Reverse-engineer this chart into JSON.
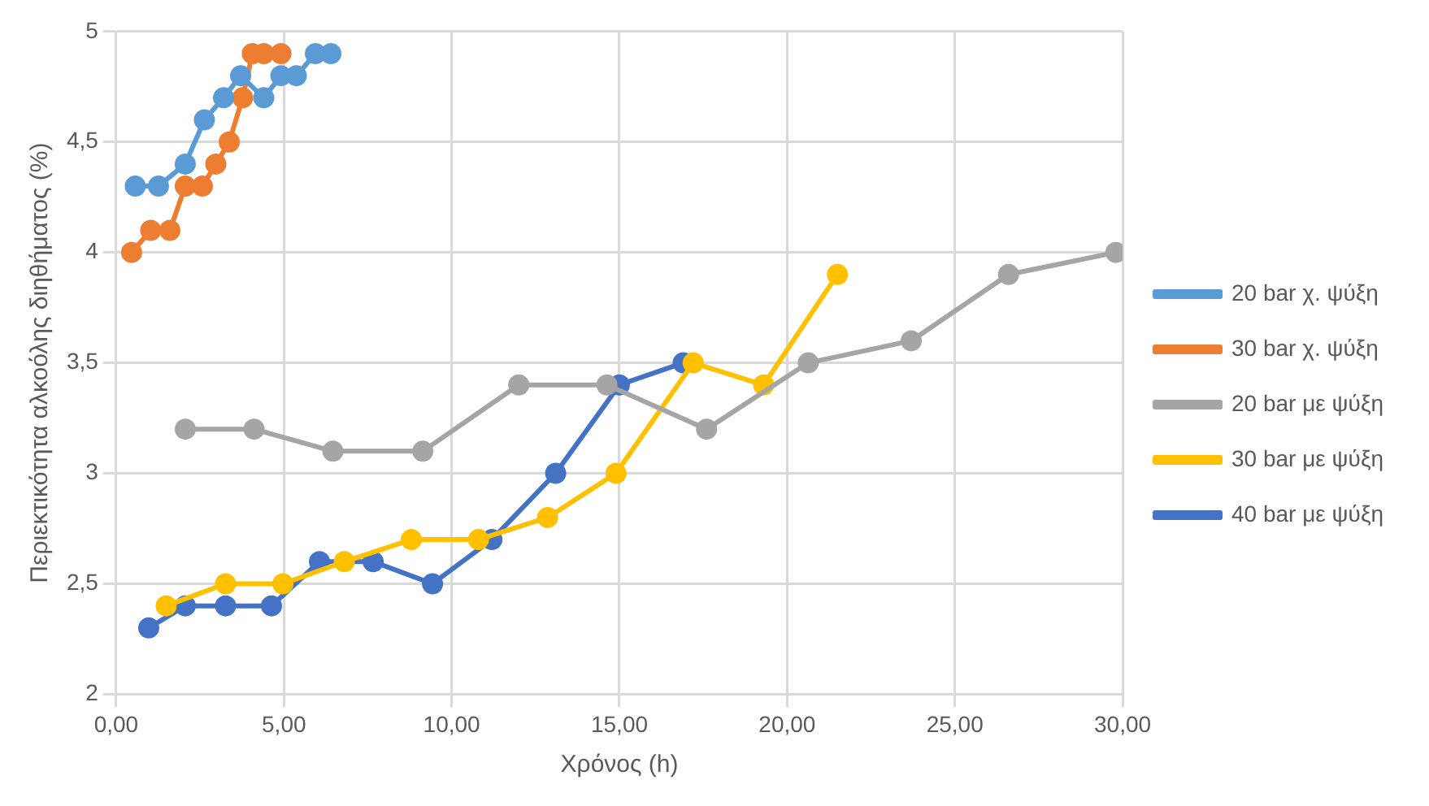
{
  "chart_data": {
    "type": "line",
    "xlabel": "Χρόνος (h)",
    "ylabel": "Περιεκτικότητα αλκοόλης διηθήματος (%)",
    "xlim": [
      0,
      30
    ],
    "xticks": [
      {
        "value": 0,
        "label": "0,00"
      },
      {
        "value": 5,
        "label": "5,00"
      },
      {
        "value": 10,
        "label": "10,00"
      },
      {
        "value": 15,
        "label": "15,00"
      },
      {
        "value": 20,
        "label": "20,00"
      },
      {
        "value": 25,
        "label": "25,00"
      },
      {
        "value": 30,
        "label": "30,00"
      }
    ],
    "ylim": [
      2,
      5
    ],
    "yticks": [
      2,
      {
        "value": 2.5,
        "label": "2,5"
      },
      3,
      {
        "value": 3.5,
        "label": "3,5"
      },
      4,
      {
        "value": 4.5,
        "label": "4,5"
      },
      5
    ],
    "grid": true,
    "legend": "right",
    "marker": "circle",
    "line_style": "solid",
    "series": [
      {
        "name": "20 bar χ. ψύξη",
        "color": "#5b9bd5",
        "x": [
          0.57,
          1.26,
          2.06,
          2.63,
          3.2,
          3.71,
          4.4,
          4.91,
          5.37,
          5.94,
          6.4
        ],
        "values": [
          4.3,
          4.3,
          4.4,
          4.6,
          4.7,
          4.8,
          4.7,
          4.8,
          4.8,
          4.9,
          4.9
        ]
      },
      {
        "name": "30 bar χ. ψύξη",
        "color": "#ed7d31",
        "x": [
          0.46,
          1.03,
          1.6,
          2.06,
          2.57,
          2.97,
          3.37,
          3.77,
          4.06,
          4.4,
          4.91
        ],
        "values": [
          4.0,
          4.1,
          4.1,
          4.3,
          4.3,
          4.4,
          4.5,
          4.7,
          4.9,
          4.9,
          4.9
        ]
      },
      {
        "name": "20 bar με ψύξη",
        "color": "#a5a5a5",
        "x": [
          2.06,
          4.11,
          6.46,
          9.14,
          12.0,
          14.63,
          17.6,
          20.63,
          23.7,
          26.6,
          29.8
        ],
        "values": [
          3.2,
          3.2,
          3.1,
          3.1,
          3.4,
          3.4,
          3.2,
          3.5,
          3.6,
          3.9,
          4.0
        ]
      },
      {
        "name": "30 bar με ψύξη",
        "color": "#ffc000",
        "x": [
          1.49,
          3.26,
          4.97,
          6.8,
          8.8,
          10.8,
          12.86,
          14.9,
          17.2,
          19.3,
          21.5
        ],
        "values": [
          2.4,
          2.5,
          2.5,
          2.6,
          2.7,
          2.7,
          2.8,
          3.0,
          3.5,
          3.4,
          3.9
        ]
      },
      {
        "name": "40 bar με ψύξη",
        "color": "#4472c4",
        "x": [
          0.97,
          2.06,
          3.26,
          4.63,
          6.06,
          7.66,
          9.43,
          11.2,
          13.1,
          15.0,
          16.9
        ],
        "values": [
          2.3,
          2.4,
          2.4,
          2.4,
          2.6,
          2.6,
          2.5,
          2.7,
          3.0,
          3.4,
          3.5
        ]
      }
    ]
  }
}
